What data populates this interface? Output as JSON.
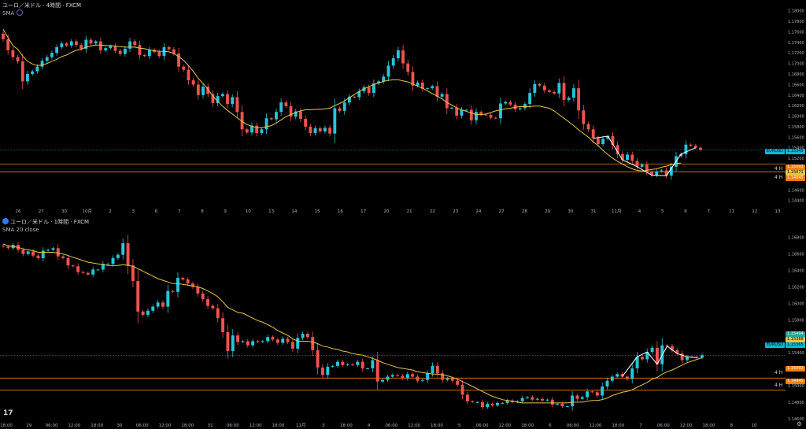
{
  "top": {
    "title": "ユーロ／米ドル · 4時間 · FXCM",
    "indicator": "SMA",
    "yticks": [
      "1.18000",
      "1.17800",
      "1.17600",
      "1.17400",
      "1.17200",
      "1.17000",
      "1.16800",
      "1.16600",
      "1.16400",
      "1.16200",
      "1.16000",
      "1.15800",
      "1.15600",
      "1.15400",
      "1.15200",
      "1.15000",
      "1.14800",
      "1.14600",
      "1.14400"
    ],
    "xticks": [
      "26",
      "27",
      "30",
      "10月",
      "2",
      "3",
      "6",
      "7",
      "8",
      "9",
      "10",
      "13",
      "14",
      "15",
      "16",
      "17",
      "20",
      "21",
      "22",
      "23",
      "24",
      "27",
      "28",
      "29",
      "30",
      "31",
      "11月",
      "4",
      "5",
      "6",
      "7",
      "11",
      "12",
      "13"
    ],
    "tags": {
      "price_sym": "EURUSD",
      "price": "1.15345",
      "sma": "1.15093",
      "h1": "1.15071",
      "h2": "1.14945"
    },
    "hlines_label": "4 H"
  },
  "bottom": {
    "title": "ユーロ／米ドル · 1時間 · FXCM",
    "indicator": "SMA 20 close",
    "yticks": [
      "1.16800",
      "1.16600",
      "1.16400",
      "1.16200",
      "1.16000",
      "1.15800",
      "1.15600",
      "1.15400",
      "1.15200",
      "1.15000",
      "1.14800",
      "1.14600"
    ],
    "xticks": [
      "18:00",
      "29",
      "06:00",
      "12:00",
      "18:00",
      "30",
      "06:00",
      "12:00",
      "18:00",
      "31",
      "06:00",
      "12:00",
      "18:00",
      "11月",
      "3",
      "18:00",
      "4",
      "06:00",
      "12:00",
      "18:00",
      "5",
      "06:00",
      "12:00",
      "18:00",
      "6",
      "06:00",
      "12:00",
      "18:00",
      "7",
      "06:00",
      "12:00",
      "18:00",
      "8",
      "10"
    ],
    "tags": {
      "green": "1.15404",
      "yellow": "1.15388",
      "price_sym": "EURUSD",
      "price": "1.15365",
      "h1": "1.15092",
      "h2": "1.14945"
    },
    "hlines_label": "4 H"
  },
  "colors": {
    "up": "#26a69a",
    "down": "#ef5350",
    "upbright": "#26c6da",
    "sma": "#e8c547",
    "hline": "#f57c00",
    "tag": "#00bcd4"
  },
  "chart_data": [
    {
      "type": "candlestick",
      "title": "ユーロ／米ドル · 4時間 · FXCM",
      "ylim": [
        1.1435,
        1.181
      ],
      "close": [
        1.1746,
        1.1725,
        1.1712,
        1.1704,
        1.1666,
        1.168,
        1.1685,
        1.1694,
        1.1705,
        1.1712,
        1.172,
        1.1731,
        1.1738,
        1.1734,
        1.1742,
        1.1735,
        1.1728,
        1.1745,
        1.1738,
        1.1742,
        1.1725,
        1.1729,
        1.1733,
        1.1724,
        1.1718,
        1.1728,
        1.1742,
        1.1735,
        1.1716,
        1.1714,
        1.1726,
        1.1722,
        1.1714,
        1.1731,
        1.1727,
        1.1719,
        1.1694,
        1.1688,
        1.1668,
        1.166,
        1.164,
        1.1656,
        1.1642,
        1.1625,
        1.1638,
        1.1642,
        1.1623,
        1.1636,
        1.1608,
        1.1575,
        1.1569,
        1.1582,
        1.1568,
        1.1575,
        1.1596,
        1.1594,
        1.1608,
        1.1626,
        1.1619,
        1.1599,
        1.1609,
        1.1595,
        1.158,
        1.1568,
        1.1577,
        1.1571,
        1.1578,
        1.1567,
        1.1615,
        1.161,
        1.1626,
        1.1637,
        1.1636,
        1.1647,
        1.1655,
        1.1644,
        1.1662,
        1.1666,
        1.1675,
        1.1696,
        1.171,
        1.1725,
        1.17,
        1.1684,
        1.1658,
        1.1664,
        1.1652,
        1.1653,
        1.1657,
        1.1637,
        1.1642,
        1.1615,
        1.1616,
        1.1601,
        1.1612,
        1.1612,
        1.1592,
        1.1608,
        1.1603,
        1.1602,
        1.1597,
        1.1596,
        1.1624,
        1.1627,
        1.1622,
        1.1613,
        1.1615,
        1.1623,
        1.1644,
        1.1661,
        1.1658,
        1.1649,
        1.1646,
        1.1643,
        1.1663,
        1.1631,
        1.1635,
        1.1653,
        1.1611,
        1.1585,
        1.1575,
        1.1558,
        1.1547,
        1.1557,
        1.1562,
        1.1545,
        1.1528,
        1.1517,
        1.1527,
        1.1515,
        1.1504,
        1.1508,
        1.1494,
        1.1488,
        1.1495,
        1.1497,
        1.1487,
        1.1504,
        1.1524,
        1.1528,
        1.1546,
        1.1544,
        1.154,
        1.1536
      ],
      "sma": [
        1.1765,
        1.1749,
        1.1734,
        1.1727,
        1.1714,
        1.1704,
        1.1699,
        1.1696,
        1.1697,
        1.17,
        1.1704,
        1.1708,
        1.1713,
        1.1716,
        1.1721,
        1.1725,
        1.1727,
        1.1731,
        1.1733,
        1.1735,
        1.1735,
        1.1734,
        1.1734,
        1.1733,
        1.1732,
        1.1731,
        1.1731,
        1.1731,
        1.1729,
        1.1728,
        1.1726,
        1.1724,
        1.1723,
        1.1723,
        1.1722,
        1.1719,
        1.1713,
        1.1706,
        1.1696,
        1.1685,
        1.1672,
        1.1662,
        1.1651,
        1.1638,
        1.1628,
        1.1619,
        1.1611,
        1.1604,
        1.1597,
        1.159,
        1.1584,
        1.1581,
        1.1578,
        1.1578,
        1.158,
        1.1582,
        1.1587,
        1.1593,
        1.1599,
        1.1603,
        1.1607,
        1.161,
        1.1612,
        1.1612,
        1.1613,
        1.1613,
        1.1614,
        1.1615,
        1.162,
        1.1624,
        1.1629,
        1.1635,
        1.1641,
        1.1647,
        1.1652,
        1.1656,
        1.166,
        1.1663,
        1.1666,
        1.1668,
        1.1669,
        1.1669,
        1.1667,
        1.1665,
        1.1661,
        1.1657,
        1.1653,
        1.1648,
        1.1643,
        1.1638,
        1.1633,
        1.1626,
        1.1621,
        1.1616,
        1.1612,
        1.1609,
        1.1606,
        1.1603,
        1.1603,
        1.1604,
        1.1607,
        1.161,
        1.1612,
        1.1614,
        1.1615,
        1.1617,
        1.1618,
        1.1618,
        1.1618,
        1.1619,
        1.1619,
        1.1617,
        1.1615,
        1.161,
        1.1603,
        1.1596,
        1.1589,
        1.1582,
        1.1574,
        1.1567,
        1.156,
        1.1551,
        1.1544,
        1.1535,
        1.1527,
        1.152,
        1.1514,
        1.1509,
        1.1504,
        1.15,
        1.1497,
        1.1496,
        1.1497,
        1.1499,
        1.15,
        1.1503,
        1.1505,
        1.1508,
        1.151,
        1.1511
      ]
    },
    {
      "type": "candlestick",
      "title": "ユーロ／米ドル · 1時間 · FXCM",
      "ylim": [
        1.1455,
        1.1695
      ],
      "close": [
        1.1669,
        1.1667,
        1.1671,
        1.1665,
        1.166,
        1.1663,
        1.1658,
        1.1655,
        1.1664,
        1.1665,
        1.1667,
        1.1657,
        1.1655,
        1.1646,
        1.1645,
        1.1638,
        1.1637,
        1.1635,
        1.1641,
        1.1641,
        1.1648,
        1.1648,
        1.1655,
        1.1659,
        1.1673,
        1.1646,
        1.1627,
        1.159,
        1.1586,
        1.1591,
        1.1596,
        1.1601,
        1.1596,
        1.1615,
        1.1614,
        1.1631,
        1.1629,
        1.1624,
        1.162,
        1.1612,
        1.1605,
        1.1597,
        1.1594,
        1.1582,
        1.1565,
        1.1542,
        1.1561,
        1.1553,
        1.1554,
        1.1549,
        1.1554,
        1.1553,
        1.1554,
        1.1559,
        1.1556,
        1.1552,
        1.1557,
        1.1553,
        1.1545,
        1.1558,
        1.1563,
        1.1559,
        1.1543,
        1.1522,
        1.1513,
        1.1523,
        1.1524,
        1.1529,
        1.1525,
        1.1526,
        1.1525,
        1.1529,
        1.1521,
        1.1521,
        1.1531,
        1.1505,
        1.1507,
        1.1511,
        1.1513,
        1.1512,
        1.1509,
        1.1514,
        1.1511,
        1.1506,
        1.1507,
        1.1515,
        1.1524,
        1.1515,
        1.1507,
        1.1509,
        1.1506,
        1.1501,
        1.1489,
        1.1481,
        1.148,
        1.148,
        1.1474,
        1.1478,
        1.1476,
        1.1479,
        1.1479,
        1.1482,
        1.148,
        1.1481,
        1.1485,
        1.1486,
        1.1483,
        1.1484,
        1.1482,
        1.1483,
        1.1477,
        1.1478,
        1.1475,
        1.1475,
        1.1488,
        1.1484,
        1.1486,
        1.1493,
        1.1492,
        1.1488,
        1.1499,
        1.1506,
        1.1511,
        1.1514,
        1.1511,
        1.1508,
        1.1521,
        1.1535,
        1.1532,
        1.1541,
        1.1546,
        1.1526,
        1.1549,
        1.1548,
        1.1543,
        1.1539,
        1.1531,
        1.1535,
        1.1535,
        1.1534,
        1.1537
      ],
      "sma": [
        1.1672,
        1.167,
        1.1669,
        1.1668,
        1.1666,
        1.1665,
        1.1664,
        1.1662,
        1.1662,
        1.1662,
        1.1662,
        1.1661,
        1.166,
        1.1658,
        1.1656,
        1.1654,
        1.1652,
        1.165,
        1.1649,
        1.1648,
        1.1647,
        1.1646,
        1.1646,
        1.1646,
        1.1647,
        1.1646,
        1.1645,
        1.1642,
        1.1639,
        1.1636,
        1.1633,
        1.163,
        1.1628,
        1.1626,
        1.1624,
        1.1624,
        1.1623,
        1.1622,
        1.1621,
        1.162,
        1.1618,
        1.1615,
        1.1612,
        1.1608,
        1.1602,
        1.1595,
        1.1592,
        1.1589,
        1.1588,
        1.1585,
        1.1582,
        1.1579,
        1.1577,
        1.1574,
        1.1571,
        1.1567,
        1.1564,
        1.1561,
        1.1557,
        1.1554,
        1.1554,
        1.1554,
        1.1553,
        1.1551,
        1.1548,
        1.1547,
        1.1545,
        1.1544,
        1.1542,
        1.1541,
        1.1539,
        1.1538,
        1.1537,
        1.1535,
        1.1533,
        1.1531,
        1.1528,
        1.1526,
        1.1524,
        1.1522,
        1.1521,
        1.152,
        1.1519,
        1.1517,
        1.1516,
        1.1515,
        1.1514,
        1.1514,
        1.1513,
        1.1512,
        1.151,
        1.1508,
        1.1505,
        1.1502,
        1.1499,
        1.1496,
        1.1493,
        1.149,
        1.1487,
        1.1485,
        1.1483,
        1.1482,
        1.1481,
        1.148,
        1.1479,
        1.1479,
        1.1479,
        1.1479,
        1.1479,
        1.1479,
        1.1479,
        1.1479,
        1.1479,
        1.1479,
        1.148,
        1.148,
        1.148,
        1.1481,
        1.1482,
        1.1482,
        1.1483,
        1.1485,
        1.1488,
        1.149,
        1.1492,
        1.1493,
        1.1495,
        1.1498,
        1.1501,
        1.1504,
        1.1508,
        1.151,
        1.1514,
        1.1517,
        1.1519,
        1.1522,
        1.1525,
        1.1528,
        1.153,
        1.1532,
        1.1534
      ]
    }
  ]
}
